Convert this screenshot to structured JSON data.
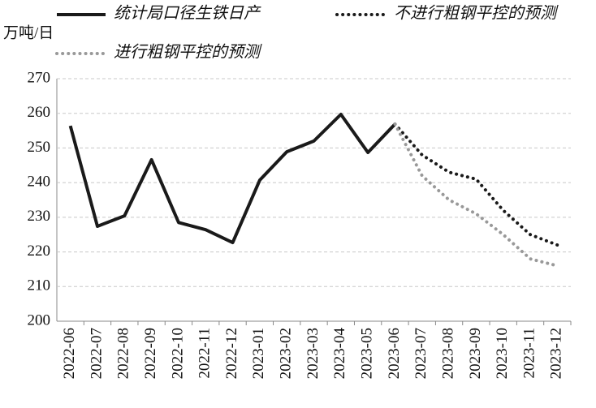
{
  "chart_data": {
    "type": "line",
    "y_label": "万吨/日",
    "categories": [
      "2022-06",
      "2022-07",
      "2022-08",
      "2022-09",
      "2022-10",
      "2022-11",
      "2022-12",
      "2023-01",
      "2023-02",
      "2023-03",
      "2023-04",
      "2023-05",
      "2023-06",
      "2023-07",
      "2023-08",
      "2023-09",
      "2023-10",
      "2023-11",
      "2023-12"
    ],
    "series": [
      {
        "name": "统计局口径生铁日产",
        "color": "#1a1a1a",
        "style": "solid",
        "values": [
          256.4,
          227.4,
          230.4,
          246.6,
          228.5,
          226.4,
          222.7,
          240.7,
          248.9,
          252,
          259.7,
          248.7,
          256.9,
          null,
          null,
          null,
          null,
          null,
          null
        ]
      },
      {
        "name": "不进行粗钢平控的预测",
        "color": "#1a1a1a",
        "style": "dotted",
        "values": [
          null,
          null,
          null,
          null,
          null,
          null,
          null,
          null,
          null,
          null,
          null,
          null,
          256.9,
          248,
          243,
          241,
          232,
          225,
          222
        ]
      },
      {
        "name": "进行粗钢平控的预测",
        "color": "#999999",
        "style": "dotted",
        "values": [
          null,
          null,
          null,
          null,
          null,
          null,
          null,
          null,
          null,
          null,
          null,
          null,
          256.9,
          242,
          235,
          231,
          225,
          218,
          216
        ]
      }
    ],
    "ylim": [
      200,
      270
    ],
    "yticks": [
      200,
      210,
      220,
      230,
      240,
      250,
      260,
      270
    ],
    "grid": true
  }
}
